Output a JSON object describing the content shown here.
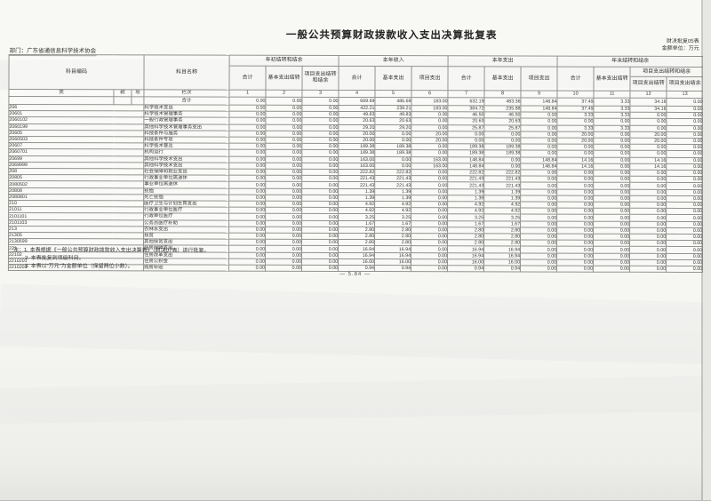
{
  "page": {
    "title": "一般公共预算财政拨款收入支出决算批复表",
    "form_code": "财决批复05表",
    "unit_label": "金额单位：万元",
    "department": "部门：广东省通信息科学技术协会",
    "page_number": "— 5.84 —"
  },
  "notes": [
    "注：1. 本表根据《一般公共预算财政拨款收入支出决算表》（财决07表）进行批复。",
    "2. 本表批复到项级科目。",
    "3. 本表以“万元”为金额单位（保留两位小数）。"
  ],
  "table": {
    "header": {
      "subject_code": "科目编码",
      "subject_name": "科目名称",
      "code_levels": [
        "类",
        "款",
        "项"
      ],
      "lanci_label": "栏次",
      "column_numbers": [
        "1",
        "2",
        "3",
        "4",
        "5",
        "6",
        "7",
        "8",
        "9",
        "10",
        "11",
        "12",
        "13"
      ],
      "groups": [
        {
          "label": "年初结转和结余",
          "columns": [
            "合计",
            "基本支出结转",
            "项目支出结转和结余"
          ]
        },
        {
          "label": "本年收入",
          "columns": [
            "合计",
            "基本支出",
            "项目支出"
          ]
        },
        {
          "label": "本年支出",
          "columns": [
            "合计",
            "基本支出",
            "项目支出"
          ]
        },
        {
          "label": "年末结转和结余",
          "columns": [
            "合计",
            "基本支出结转"
          ],
          "subgroup": {
            "label": "项目支出结转和结余",
            "columns": [
              "项目支出结转",
              "项目支出结余"
            ]
          }
        }
      ]
    },
    "total_row": {
      "label": "合计",
      "values": [
        "0.00",
        "0.00",
        "0.00",
        "669.69",
        "486.69",
        "183.00",
        "632.19",
        "483.36",
        "148.84",
        "37.49",
        "3.33",
        "34.16",
        "0.00"
      ]
    },
    "rows": [
      {
        "code": "206",
        "name": "科学技术支出",
        "indent": 0,
        "values": [
          "0.00",
          "0.00",
          "0.00",
          "422.21",
          "239.21",
          "183.00",
          "384.72",
          "235.88",
          "148.84",
          "37.49",
          "3.33",
          "34.16",
          "0.00"
        ]
      },
      {
        "code": "20601",
        "name": "科学技术管理事务",
        "indent": 1,
        "values": [
          "0.00",
          "0.00",
          "0.00",
          "49.83",
          "49.83",
          "0.00",
          "46.50",
          "46.50",
          "0.00",
          "3.33",
          "3.33",
          "0.00",
          "0.00"
        ]
      },
      {
        "code": "2060102",
        "name": "一般行政管理事务",
        "indent": 2,
        "values": [
          "0.00",
          "0.00",
          "0.00",
          "20.63",
          "20.63",
          "0.00",
          "20.63",
          "20.63",
          "0.00",
          "0.00",
          "0.00",
          "0.00",
          "0.00"
        ]
      },
      {
        "code": "2060199",
        "name": "其他科学技术管理事务支出",
        "indent": 2,
        "values": [
          "0.00",
          "0.00",
          "0.00",
          "29.20",
          "29.20",
          "0.00",
          "25.87",
          "25.87",
          "0.00",
          "3.33",
          "3.33",
          "0.00",
          "0.00"
        ]
      },
      {
        "code": "20605",
        "name": "科技条件与服务",
        "indent": 1,
        "values": [
          "0.00",
          "0.00",
          "0.00",
          "20.00",
          "0.00",
          "20.00",
          "0.00",
          "0.00",
          "0.00",
          "20.00",
          "0.00",
          "20.00",
          "0.00"
        ]
      },
      {
        "code": "2060503",
        "name": "科技条件专项",
        "indent": 2,
        "values": [
          "0.00",
          "0.00",
          "0.00",
          "20.00",
          "0.00",
          "20.00",
          "0.00",
          "0.00",
          "0.00",
          "20.00",
          "0.00",
          "20.00",
          "0.00"
        ]
      },
      {
        "code": "20607",
        "name": "科学技术普及",
        "indent": 1,
        "values": [
          "0.00",
          "0.00",
          "0.00",
          "189.38",
          "189.38",
          "0.00",
          "189.38",
          "189.38",
          "0.00",
          "0.00",
          "0.00",
          "0.00",
          "0.00"
        ]
      },
      {
        "code": "2060701",
        "name": "机构运行",
        "indent": 2,
        "values": [
          "0.00",
          "0.00",
          "0.00",
          "189.38",
          "189.38",
          "0.00",
          "189.38",
          "189.38",
          "0.00",
          "0.00",
          "0.00",
          "0.00",
          "0.00"
        ]
      },
      {
        "code": "20699",
        "name": "其他科学技术支出",
        "indent": 1,
        "values": [
          "0.00",
          "0.00",
          "0.00",
          "163.00",
          "0.00",
          "163.00",
          "148.84",
          "0.00",
          "148.84",
          "14.16",
          "0.00",
          "14.16",
          "0.00"
        ]
      },
      {
        "code": "2069999",
        "name": "其他科学技术支出",
        "indent": 2,
        "values": [
          "0.00",
          "0.00",
          "0.00",
          "163.00",
          "0.00",
          "163.00",
          "148.84",
          "0.00",
          "148.84",
          "14.16",
          "0.00",
          "14.16",
          "0.00"
        ]
      },
      {
        "code": "208",
        "name": "社会保障和就业支出",
        "indent": 0,
        "values": [
          "0.00",
          "0.00",
          "0.00",
          "222.82",
          "222.82",
          "0.00",
          "222.82",
          "222.82",
          "0.00",
          "0.00",
          "0.00",
          "0.00",
          "0.00"
        ]
      },
      {
        "code": "20805",
        "name": "行政事业单位离退休",
        "indent": 1,
        "values": [
          "0.00",
          "0.00",
          "0.00",
          "221.43",
          "221.43",
          "0.00",
          "221.43",
          "221.43",
          "0.00",
          "0.00",
          "0.00",
          "0.00",
          "0.00"
        ]
      },
      {
        "code": "2080502",
        "name": "事业单位离退休",
        "indent": 2,
        "values": [
          "0.00",
          "0.00",
          "0.00",
          "221.43",
          "221.43",
          "0.00",
          "221.43",
          "221.43",
          "0.00",
          "0.00",
          "0.00",
          "0.00",
          "0.00"
        ]
      },
      {
        "code": "20808",
        "name": "抚恤",
        "indent": 1,
        "values": [
          "0.00",
          "0.00",
          "0.00",
          "1.39",
          "1.39",
          "0.00",
          "1.39",
          "1.39",
          "0.00",
          "0.00",
          "0.00",
          "0.00",
          "0.00"
        ]
      },
      {
        "code": "2080801",
        "name": "死亡抚恤",
        "indent": 2,
        "values": [
          "0.00",
          "0.00",
          "0.00",
          "1.39",
          "1.39",
          "0.00",
          "1.39",
          "1.39",
          "0.00",
          "0.00",
          "0.00",
          "0.00",
          "0.00"
        ]
      },
      {
        "code": "210",
        "name": "医疗卫生与计划生育支出",
        "indent": 0,
        "values": [
          "0.00",
          "0.00",
          "0.00",
          "4.92",
          "4.92",
          "0.00",
          "4.92",
          "4.92",
          "0.00",
          "0.00",
          "0.00",
          "0.00",
          "0.00"
        ]
      },
      {
        "code": "21011",
        "name": "行政事业单位医疗",
        "indent": 1,
        "values": [
          "0.00",
          "0.00",
          "0.00",
          "4.92",
          "4.92",
          "0.00",
          "4.92",
          "4.92",
          "0.00",
          "0.00",
          "0.00",
          "0.00",
          "0.00"
        ]
      },
      {
        "code": "2101101",
        "name": "行政单位医疗",
        "indent": 2,
        "values": [
          "0.00",
          "0.00",
          "0.00",
          "3.25",
          "3.25",
          "0.00",
          "3.25",
          "3.25",
          "0.00",
          "0.00",
          "0.00",
          "0.00",
          "0.00"
        ]
      },
      {
        "code": "2101103",
        "name": "公务员医疗补助",
        "indent": 2,
        "values": [
          "0.00",
          "0.00",
          "0.00",
          "1.67",
          "1.67",
          "0.00",
          "1.67",
          "1.67",
          "0.00",
          "0.00",
          "0.00",
          "0.00",
          "0.00"
        ]
      },
      {
        "code": "213",
        "name": "农林水支出",
        "indent": 0,
        "values": [
          "0.00",
          "0.00",
          "0.00",
          "2.80",
          "2.80",
          "0.00",
          "2.80",
          "2.80",
          "0.00",
          "0.00",
          "0.00",
          "0.00",
          "0.00"
        ]
      },
      {
        "code": "21305",
        "name": "扶贫",
        "indent": 1,
        "values": [
          "0.00",
          "0.00",
          "0.00",
          "2.80",
          "2.80",
          "0.00",
          "2.80",
          "2.80",
          "0.00",
          "0.00",
          "0.00",
          "0.00",
          "0.00"
        ]
      },
      {
        "code": "2130599",
        "name": "其他扶贫支出",
        "indent": 2,
        "values": [
          "0.00",
          "0.00",
          "0.00",
          "2.80",
          "2.80",
          "0.00",
          "2.80",
          "2.80",
          "0.00",
          "0.00",
          "0.00",
          "0.00",
          "0.00"
        ]
      },
      {
        "code": "221",
        "name": "住房保障支出",
        "indent": 0,
        "values": [
          "0.00",
          "0.00",
          "0.00",
          "16.94",
          "16.94",
          "0.00",
          "16.94",
          "16.94",
          "0.00",
          "0.00",
          "0.00",
          "0.00",
          "0.00"
        ]
      },
      {
        "code": "22102",
        "name": "住房改革支出",
        "indent": 1,
        "values": [
          "0.00",
          "0.00",
          "0.00",
          "16.94",
          "16.94",
          "0.00",
          "16.94",
          "16.94",
          "0.00",
          "0.00",
          "0.00",
          "0.00",
          "0.00"
        ]
      },
      {
        "code": "2210201",
        "name": "住房公积金",
        "indent": 2,
        "values": [
          "0.00",
          "0.00",
          "0.00",
          "16.00",
          "16.00",
          "0.00",
          "16.00",
          "16.00",
          "0.00",
          "0.00",
          "0.00",
          "0.00",
          "0.00"
        ]
      },
      {
        "code": "2210203",
        "name": "购房补贴",
        "indent": 2,
        "values": [
          "0.00",
          "0.00",
          "0.00",
          "0.94",
          "0.94",
          "0.00",
          "0.94",
          "0.94",
          "0.00",
          "0.00",
          "0.00",
          "0.00",
          "0.00"
        ]
      }
    ]
  }
}
